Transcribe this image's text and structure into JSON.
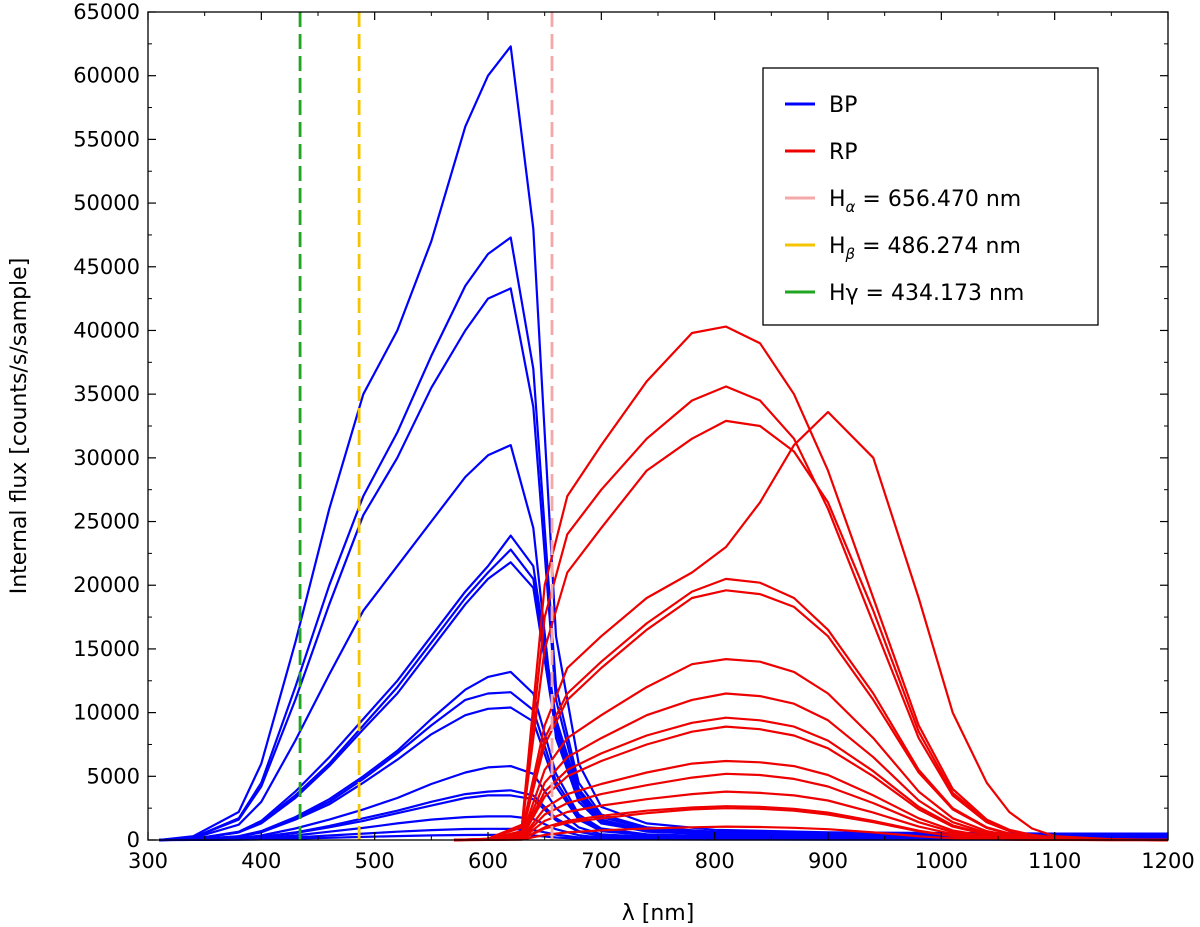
{
  "chart_data": {
    "type": "line",
    "xlabel": "λ [nm]",
    "ylabel": "Internal flux [counts/s/sample]",
    "xlim": [
      300,
      1200
    ],
    "ylim": [
      0,
      65000
    ],
    "x_ticks": [
      300,
      400,
      500,
      600,
      700,
      800,
      900,
      1000,
      1100,
      1200
    ],
    "y_ticks": [
      0,
      5000,
      10000,
      15000,
      20000,
      25000,
      30000,
      35000,
      40000,
      45000,
      50000,
      55000,
      60000,
      65000
    ],
    "grid": false,
    "legend_position": "top-right",
    "colors": {
      "BP": "#0000ff",
      "RP": "#ee0000",
      "H_alpha": "#f4a8a8",
      "H_beta": "#f5c400",
      "H_gamma": "#1fa51f"
    },
    "legend": [
      {
        "key": "BP",
        "label": "BP",
        "sub": "",
        "rest": ""
      },
      {
        "key": "RP",
        "label": "RP",
        "sub": "",
        "rest": ""
      },
      {
        "key": "H_alpha",
        "label": "H",
        "sub": "α",
        "rest": " = 656.470 nm"
      },
      {
        "key": "H_beta",
        "label": "H",
        "sub": "β",
        "rest": " = 486.274 nm"
      },
      {
        "key": "H_gamma",
        "label": "Hγ",
        "sub": "",
        "rest": " = 434.173 nm"
      }
    ],
    "vlines": [
      {
        "key": "H_gamma",
        "x": 434.173
      },
      {
        "key": "H_beta",
        "x": 486.274
      },
      {
        "key": "H_alpha",
        "x": 656.47
      }
    ],
    "bp_x": [
      310,
      340,
      380,
      400,
      430,
      460,
      490,
      520,
      550,
      580,
      600,
      620,
      640,
      660,
      680,
      700,
      740,
      800,
      900,
      1000,
      1100,
      1200
    ],
    "bp_series": [
      [
        0,
        300,
        2200,
        6000,
        15500,
        26000,
        35000,
        40000,
        47000,
        56000,
        60000,
        62300,
        48000,
        16000,
        6000,
        2600,
        1300,
        800,
        600,
        550,
        500,
        500
      ],
      [
        0,
        200,
        1700,
        4500,
        12000,
        20000,
        27000,
        32000,
        38000,
        43500,
        46000,
        47300,
        37000,
        12000,
        4500,
        2000,
        1000,
        650,
        500,
        450,
        450,
        450
      ],
      [
        0,
        200,
        1600,
        4200,
        11000,
        18500,
        25500,
        30000,
        35500,
        40000,
        42500,
        43300,
        34000,
        11000,
        4000,
        1800,
        900,
        600,
        480,
        440,
        440,
        440
      ],
      [
        0,
        150,
        1200,
        3000,
        7800,
        13000,
        18000,
        21500,
        25000,
        28500,
        30200,
        31000,
        24500,
        8000,
        3000,
        1300,
        700,
        450,
        380,
        350,
        350,
        350
      ],
      [
        0,
        80,
        600,
        1400,
        3500,
        6000,
        9000,
        12000,
        15500,
        19000,
        21000,
        22800,
        20500,
        9000,
        3500,
        1500,
        700,
        450,
        350,
        320,
        320,
        320
      ],
      [
        0,
        80,
        600,
        1300,
        3300,
        5800,
        8700,
        11500,
        15000,
        18500,
        20500,
        21800,
        19800,
        8500,
        3300,
        1400,
        650,
        430,
        340,
        310,
        310,
        310
      ],
      [
        0,
        90,
        650,
        1500,
        3800,
        6500,
        9500,
        12500,
        16000,
        19500,
        21500,
        23900,
        21500,
        9500,
        3800,
        1600,
        750,
        470,
        360,
        330,
        330,
        330
      ],
      [
        0,
        50,
        300,
        700,
        1800,
        3200,
        5000,
        7000,
        9500,
        11800,
        12800,
        13200,
        11500,
        5200,
        2000,
        900,
        450,
        300,
        250,
        230,
        230,
        230
      ],
      [
        0,
        50,
        280,
        650,
        1700,
        3000,
        4800,
        6800,
        9000,
        11000,
        11500,
        11600,
        10200,
        4600,
        1800,
        800,
        420,
        280,
        240,
        220,
        220,
        220
      ],
      [
        0,
        40,
        260,
        600,
        1600,
        2800,
        4500,
        6300,
        8300,
        9800,
        10300,
        10400,
        9300,
        4200,
        1600,
        700,
        380,
        260,
        220,
        210,
        210,
        210
      ],
      [
        0,
        30,
        150,
        350,
        900,
        1600,
        2400,
        3300,
        4400,
        5300,
        5700,
        5800,
        5200,
        2500,
        1000,
        450,
        250,
        180,
        150,
        140,
        140,
        140
      ],
      [
        0,
        20,
        100,
        250,
        600,
        1100,
        1700,
        2300,
        3000,
        3600,
        3800,
        3900,
        3500,
        1700,
        700,
        330,
        180,
        140,
        120,
        110,
        110,
        110
      ],
      [
        0,
        20,
        90,
        220,
        550,
        1000,
        1500,
        2100,
        2700,
        3300,
        3500,
        3500,
        3200,
        1550,
        650,
        300,
        170,
        130,
        110,
        100,
        100,
        100
      ],
      [
        0,
        15,
        60,
        150,
        350,
        650,
        950,
        1300,
        1600,
        1800,
        1850,
        1850,
        1650,
        850,
        380,
        180,
        110,
        90,
        80,
        75,
        75,
        75
      ],
      [
        0,
        10,
        40,
        90,
        200,
        350,
        500,
        650,
        780,
        860,
        880,
        870,
        780,
        420,
        200,
        100,
        70,
        60,
        55,
        50,
        50,
        50
      ],
      [
        0,
        5,
        20,
        45,
        100,
        170,
        240,
        310,
        360,
        390,
        400,
        390,
        350,
        200,
        100,
        60,
        45,
        40,
        35,
        35,
        35,
        35
      ]
    ],
    "rp_x": [
      570,
      600,
      630,
      650,
      670,
      700,
      740,
      780,
      810,
      840,
      870,
      900,
      940,
      980,
      1010,
      1040,
      1060,
      1080,
      1100,
      1150,
      1200
    ],
    "rp_series": [
      [
        0,
        100,
        1200,
        20000,
        27000,
        31000,
        36000,
        39800,
        40300,
        39000,
        35000,
        29000,
        19000,
        9000,
        4000,
        1600,
        800,
        400,
        200,
        50,
        0
      ],
      [
        0,
        90,
        1100,
        17500,
        24000,
        27500,
        31500,
        34500,
        35600,
        34500,
        31500,
        26000,
        17000,
        8000,
        3500,
        1400,
        700,
        350,
        180,
        40,
        0
      ],
      [
        0,
        80,
        1000,
        15000,
        21000,
        24500,
        29000,
        31500,
        32900,
        32500,
        30500,
        26500,
        18000,
        8500,
        3700,
        1500,
        750,
        380,
        190,
        45,
        0
      ],
      [
        0,
        60,
        700,
        9000,
        13500,
        16000,
        19000,
        21000,
        23000,
        26500,
        31000,
        33600,
        30000,
        19000,
        10000,
        4500,
        2200,
        900,
        300,
        60,
        0
      ],
      [
        0,
        50,
        550,
        8000,
        11500,
        14000,
        17000,
        19500,
        20500,
        20200,
        19000,
        16500,
        11500,
        5500,
        2500,
        1000,
        500,
        250,
        120,
        30,
        0
      ],
      [
        0,
        50,
        520,
        7500,
        11000,
        13500,
        16500,
        19000,
        19600,
        19300,
        18300,
        16000,
        11000,
        5300,
        2400,
        950,
        480,
        240,
        110,
        30,
        0
      ],
      [
        0,
        40,
        380,
        5500,
        8000,
        9800,
        12000,
        13800,
        14200,
        14000,
        13200,
        11500,
        8000,
        3800,
        1700,
        700,
        350,
        170,
        80,
        20,
        0
      ],
      [
        0,
        30,
        300,
        4500,
        6500,
        8000,
        9800,
        11000,
        11500,
        11300,
        10700,
        9400,
        6500,
        3100,
        1400,
        560,
        280,
        140,
        70,
        15,
        0
      ],
      [
        0,
        25,
        250,
        3800,
        5500,
        6800,
        8200,
        9200,
        9600,
        9400,
        8900,
        7800,
        5400,
        2600,
        1150,
        460,
        230,
        115,
        55,
        12,
        0
      ],
      [
        0,
        22,
        230,
        3400,
        5000,
        6200,
        7500,
        8500,
        8900,
        8700,
        8200,
        7200,
        5000,
        2400,
        1050,
        420,
        210,
        105,
        50,
        10,
        0
      ],
      [
        0,
        18,
        170,
        2500,
        3600,
        4400,
        5300,
        6000,
        6200,
        6100,
        5800,
        5100,
        3500,
        1700,
        750,
        300,
        150,
        75,
        35,
        8,
        0
      ],
      [
        0,
        15,
        140,
        2000,
        2900,
        3600,
        4300,
        4900,
        5200,
        5100,
        4800,
        4200,
        2900,
        1400,
        620,
        250,
        125,
        62,
        30,
        6,
        0
      ],
      [
        0,
        12,
        110,
        1500,
        2200,
        2700,
        3200,
        3600,
        3800,
        3700,
        3500,
        3100,
        2150,
        1050,
        460,
        190,
        95,
        48,
        22,
        5,
        0
      ],
      [
        0,
        9,
        80,
        1000,
        1500,
        1900,
        2300,
        2550,
        2650,
        2600,
        2450,
        2150,
        1500,
        730,
        320,
        130,
        65,
        33,
        15,
        3,
        0
      ],
      [
        0,
        8,
        70,
        900,
        1350,
        1700,
        2100,
        2400,
        2500,
        2450,
        2300,
        2000,
        1400,
        680,
        300,
        120,
        60,
        30,
        14,
        3,
        0
      ],
      [
        0,
        4,
        30,
        400,
        600,
        750,
        900,
        1000,
        1050,
        1020,
        960,
        850,
        600,
        290,
        130,
        52,
        26,
        13,
        6,
        1,
        0
      ]
    ]
  }
}
